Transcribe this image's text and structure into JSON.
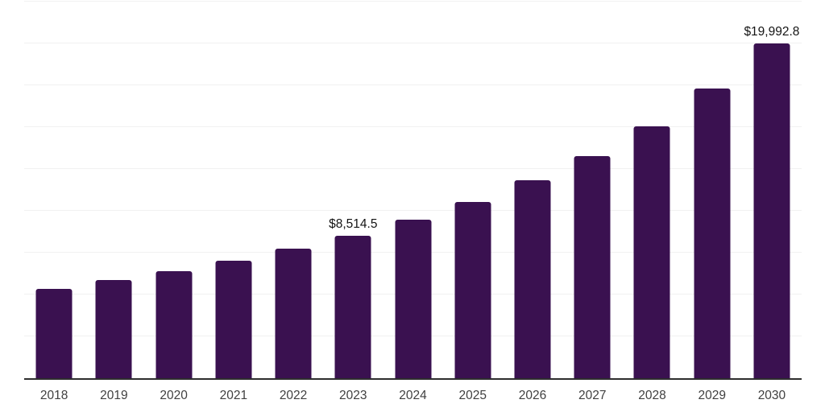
{
  "chart_data": {
    "type": "bar",
    "title": "",
    "xlabel": "",
    "ylabel": "",
    "categories": [
      "2018",
      "2019",
      "2020",
      "2021",
      "2022",
      "2023",
      "2024",
      "2025",
      "2026",
      "2027",
      "2028",
      "2029",
      "2030"
    ],
    "values": [
      5335,
      5865,
      6395,
      7020,
      7740,
      8514.5,
      9470,
      10535,
      11825,
      13270,
      15050,
      17305,
      19992.8
    ],
    "bar_labels": [
      "",
      "",
      "",
      "",
      "",
      "$8,514.5",
      "",
      "",
      "",
      "",
      "",
      "",
      "$19,992.8"
    ],
    "ylim": [
      0,
      22500
    ],
    "gridline_step": 2500,
    "grid": "horizontal gridlines only, no y tick labels",
    "legend": "none"
  },
  "style": {
    "bar_color": "#3a1150",
    "gridline_color": "#f1f1f1",
    "axis_line_color": "#2e2e2e",
    "tick_label_color": "#404040",
    "value_label_color": "#141414",
    "background_color": "#ffffff"
  }
}
